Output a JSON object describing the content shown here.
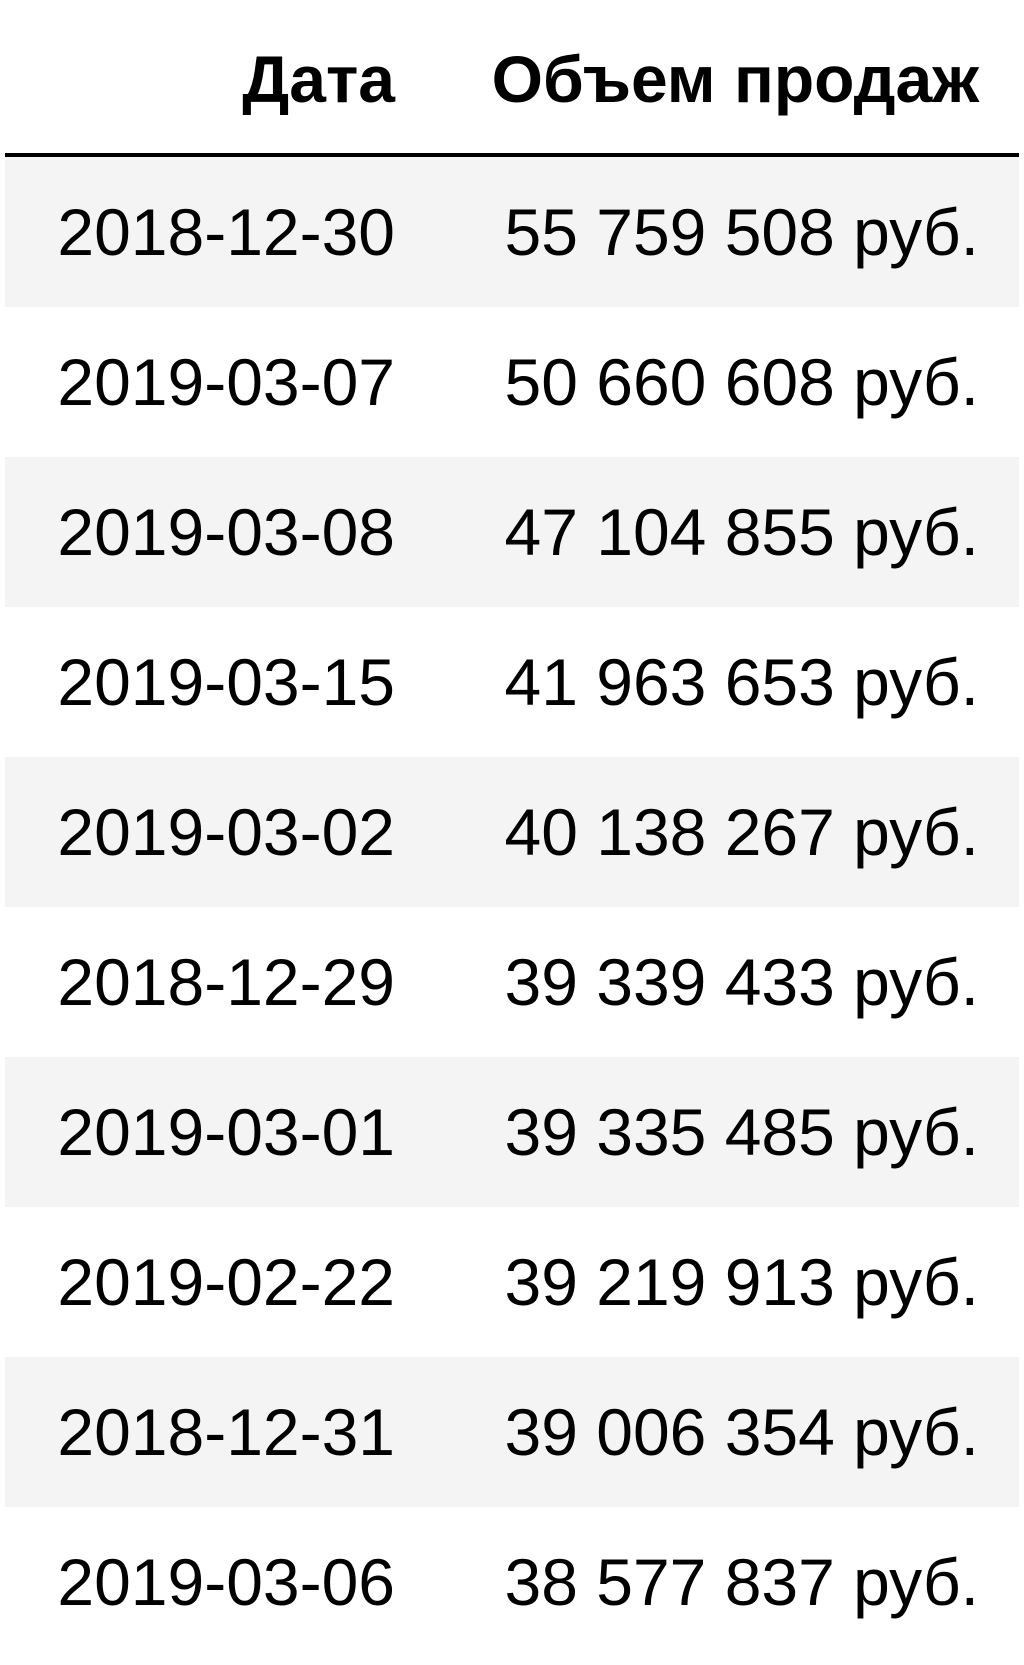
{
  "table": {
    "headers": {
      "date": "Дата",
      "sales": "Объем продаж"
    },
    "rows": [
      {
        "date": "2018-12-30",
        "sales": "55 759 508 руб."
      },
      {
        "date": "2019-03-07",
        "sales": "50 660 608 руб."
      },
      {
        "date": "2019-03-08",
        "sales": "47 104 855 руб."
      },
      {
        "date": "2019-03-15",
        "sales": "41 963 653 руб."
      },
      {
        "date": "2019-03-02",
        "sales": "40 138 267 руб."
      },
      {
        "date": "2018-12-29",
        "sales": "39 339 433 руб."
      },
      {
        "date": "2019-03-01",
        "sales": "39 335 485 руб."
      },
      {
        "date": "2019-02-22",
        "sales": "39 219 913 руб."
      },
      {
        "date": "2018-12-31",
        "sales": "39 006 354 руб."
      },
      {
        "date": "2019-03-06",
        "sales": "38 577 837 руб."
      }
    ],
    "row_colors": {
      "odd": "#f4f4f4",
      "even": "#ffffff"
    },
    "header_border_color": "#000000"
  }
}
